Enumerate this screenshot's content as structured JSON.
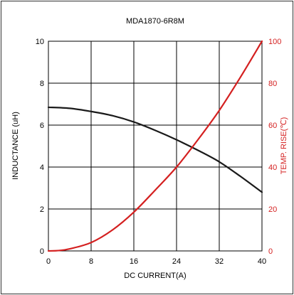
{
  "chart_data": {
    "type": "line",
    "title": "MDA1870-6R8M",
    "xlabel": "DC CURRENT(A)",
    "ylabel_left": "INDUCTANCE (uH)",
    "ylabel_right": "TEMP. RISE(℃)",
    "xlim": [
      0,
      40
    ],
    "ylim_left": [
      0,
      10
    ],
    "ylim_right": [
      0,
      100
    ],
    "x_ticks": [
      "0",
      "8",
      "16",
      "24",
      "32",
      "40"
    ],
    "y_left_ticks": [
      "0",
      "2",
      "4",
      "6",
      "8",
      "10"
    ],
    "y_right_ticks": [
      "0",
      "20",
      "40",
      "60",
      "80",
      "100"
    ],
    "grid": true,
    "colors": {
      "inductance": "#1a1a1a",
      "temp_rise": "#d42020",
      "right_axis": "#d42020"
    },
    "series": [
      {
        "axis": "left",
        "x": [
          0,
          4,
          8,
          12,
          16,
          20,
          24,
          28,
          32,
          36,
          40
        ],
        "y": [
          6.85,
          6.8,
          6.65,
          6.45,
          6.15,
          5.75,
          5.3,
          4.8,
          4.25,
          3.55,
          2.8
        ]
      },
      {
        "axis": "right",
        "x": [
          0,
          2,
          4,
          8,
          12,
          16,
          20,
          24,
          28,
          32,
          36,
          40
        ],
        "y": [
          0,
          0.2,
          1,
          4,
          10,
          18.5,
          29,
          40,
          53,
          67,
          83,
          100
        ]
      }
    ]
  }
}
